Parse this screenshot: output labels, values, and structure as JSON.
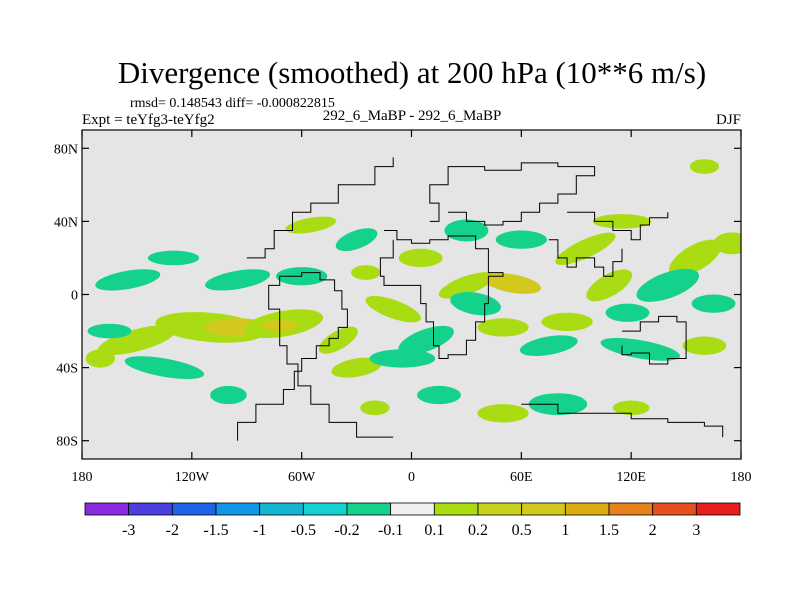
{
  "chart_data": {
    "type": "heatmap",
    "title": "Divergence (smoothed) at 200 hPa (10**6 m/s)",
    "stats": "rmsd= 0.148543  diff= -0.000822815",
    "experiment": "Expt = teYfg3-teYfg2",
    "subtitle": "292_6_MaBP - 292_6_MaBP",
    "season": "DJF",
    "x_range": [
      -180,
      180
    ],
    "y_range": [
      -90,
      90
    ],
    "x_ticks": [
      {
        "value": -180,
        "label": "180"
      },
      {
        "value": -120,
        "label": "120W"
      },
      {
        "value": -60,
        "label": "60W"
      },
      {
        "value": 0,
        "label": "0"
      },
      {
        "value": 60,
        "label": "60E"
      },
      {
        "value": 120,
        "label": "120E"
      },
      {
        "value": 180,
        "label": "180"
      }
    ],
    "y_ticks": [
      {
        "value": 80,
        "label": "80N"
      },
      {
        "value": 40,
        "label": "40N"
      },
      {
        "value": 0,
        "label": "0"
      },
      {
        "value": -40,
        "label": "40S"
      },
      {
        "value": -80,
        "label": "80S"
      }
    ],
    "colorbar": {
      "colors": [
        "#8a2be2",
        "#4b3fe0",
        "#1e64e6",
        "#1496e6",
        "#14b4d2",
        "#14d2d2",
        "#14d28c",
        "#f0f0f0",
        "#aadc14",
        "#c8d21e",
        "#d2c81e",
        "#dcaa14",
        "#e6821e",
        "#e6501e",
        "#e61e1e"
      ],
      "labels": [
        "-3",
        "-2",
        "-1.5",
        "-1",
        "-0.5",
        "-0.2",
        "-0.1",
        "0.1",
        "0.2",
        "0.5",
        "1",
        "1.5",
        "2",
        "3"
      ]
    },
    "blobs": [
      {
        "lon": -150,
        "lat": -25,
        "rx": 22,
        "ry": 6,
        "rot": -15,
        "level": "pos1"
      },
      {
        "lon": -110,
        "lat": -18,
        "rx": 30,
        "ry": 8,
        "rot": 5,
        "level": "pos1"
      },
      {
        "lon": -95,
        "lat": -18,
        "rx": 18,
        "ry": 5,
        "rot": 0,
        "level": "pos2"
      },
      {
        "lon": -70,
        "lat": -16,
        "rx": 22,
        "ry": 7,
        "rot": -10,
        "level": "pos1"
      },
      {
        "lon": -72,
        "lat": -17,
        "rx": 10,
        "ry": 3,
        "rot": 0,
        "level": "pos2"
      },
      {
        "lon": -40,
        "lat": -25,
        "rx": 12,
        "ry": 5,
        "rot": -30,
        "level": "pos1"
      },
      {
        "lon": -30,
        "lat": -40,
        "rx": 14,
        "ry": 5,
        "rot": -10,
        "level": "pos1"
      },
      {
        "lon": -55,
        "lat": 38,
        "rx": 14,
        "ry": 4,
        "rot": -10,
        "level": "pos1"
      },
      {
        "lon": -25,
        "lat": 12,
        "rx": 8,
        "ry": 4,
        "rot": 0,
        "level": "pos1"
      },
      {
        "lon": -10,
        "lat": -8,
        "rx": 16,
        "ry": 5,
        "rot": 20,
        "level": "pos1"
      },
      {
        "lon": 5,
        "lat": 20,
        "rx": 12,
        "ry": 5,
        "rot": 0,
        "level": "pos1"
      },
      {
        "lon": 30,
        "lat": 5,
        "rx": 16,
        "ry": 5,
        "rot": -20,
        "level": "pos1"
      },
      {
        "lon": 50,
        "lat": -18,
        "rx": 14,
        "ry": 5,
        "rot": 0,
        "level": "pos1"
      },
      {
        "lon": 55,
        "lat": 6,
        "rx": 16,
        "ry": 5,
        "rot": 10,
        "level": "pos2"
      },
      {
        "lon": 85,
        "lat": -15,
        "rx": 14,
        "ry": 5,
        "rot": 0,
        "level": "pos1"
      },
      {
        "lon": 95,
        "lat": 25,
        "rx": 18,
        "ry": 5,
        "rot": -25,
        "level": "pos1"
      },
      {
        "lon": 108,
        "lat": 5,
        "rx": 14,
        "ry": 6,
        "rot": -30,
        "level": "pos1"
      },
      {
        "lon": 115,
        "lat": 40,
        "rx": 16,
        "ry": 4,
        "rot": 0,
        "level": "pos1"
      },
      {
        "lon": 155,
        "lat": 20,
        "rx": 16,
        "ry": 7,
        "rot": -30,
        "level": "pos1"
      },
      {
        "lon": 175,
        "lat": 28,
        "rx": 10,
        "ry": 6,
        "rot": 0,
        "level": "pos1"
      },
      {
        "lon": 160,
        "lat": -28,
        "rx": 12,
        "ry": 5,
        "rot": 0,
        "level": "pos1"
      },
      {
        "lon": 50,
        "lat": -65,
        "rx": 14,
        "ry": 5,
        "rot": 0,
        "level": "pos1"
      },
      {
        "lon": 120,
        "lat": -62,
        "rx": 10,
        "ry": 4,
        "rot": 0,
        "level": "pos1"
      },
      {
        "lon": -20,
        "lat": -62,
        "rx": 8,
        "ry": 4,
        "rot": 0,
        "level": "pos1"
      },
      {
        "lon": 160,
        "lat": 70,
        "rx": 8,
        "ry": 4,
        "rot": 0,
        "level": "pos1"
      },
      {
        "lon": -155,
        "lat": 8,
        "rx": 18,
        "ry": 5,
        "rot": -10,
        "level": "neg1"
      },
      {
        "lon": -130,
        "lat": 20,
        "rx": 14,
        "ry": 4,
        "rot": 0,
        "level": "neg1"
      },
      {
        "lon": -135,
        "lat": -40,
        "rx": 22,
        "ry": 5,
        "rot": 10,
        "level": "neg1"
      },
      {
        "lon": -165,
        "lat": -20,
        "rx": 12,
        "ry": 4,
        "rot": 0,
        "level": "neg1"
      },
      {
        "lon": -95,
        "lat": 8,
        "rx": 18,
        "ry": 5,
        "rot": -10,
        "level": "neg1"
      },
      {
        "lon": -60,
        "lat": 10,
        "rx": 14,
        "ry": 5,
        "rot": 0,
        "level": "neg1"
      },
      {
        "lon": -30,
        "lat": 30,
        "rx": 12,
        "ry": 5,
        "rot": -20,
        "level": "neg1"
      },
      {
        "lon": -5,
        "lat": -35,
        "rx": 18,
        "ry": 5,
        "rot": 0,
        "level": "neg1"
      },
      {
        "lon": 8,
        "lat": -25,
        "rx": 16,
        "ry": 6,
        "rot": -20,
        "level": "neg1"
      },
      {
        "lon": 15,
        "lat": -55,
        "rx": 12,
        "ry": 5,
        "rot": 0,
        "level": "neg1"
      },
      {
        "lon": 30,
        "lat": 35,
        "rx": 12,
        "ry": 6,
        "rot": 0,
        "level": "neg1"
      },
      {
        "lon": 35,
        "lat": -5,
        "rx": 14,
        "ry": 6,
        "rot": 10,
        "level": "neg1"
      },
      {
        "lon": 60,
        "lat": 30,
        "rx": 14,
        "ry": 5,
        "rot": 0,
        "level": "neg1"
      },
      {
        "lon": 75,
        "lat": -28,
        "rx": 16,
        "ry": 5,
        "rot": -10,
        "level": "neg1"
      },
      {
        "lon": 80,
        "lat": -60,
        "rx": 16,
        "ry": 6,
        "rot": 0,
        "level": "neg1"
      },
      {
        "lon": 125,
        "lat": -30,
        "rx": 22,
        "ry": 5,
        "rot": 10,
        "level": "neg1"
      },
      {
        "lon": 140,
        "lat": 5,
        "rx": 18,
        "ry": 7,
        "rot": -20,
        "level": "neg1"
      },
      {
        "lon": 165,
        "lat": -5,
        "rx": 12,
        "ry": 5,
        "rot": 0,
        "level": "neg1"
      },
      {
        "lon": 118,
        "lat": -10,
        "rx": 12,
        "ry": 5,
        "rot": 0,
        "level": "neg1"
      },
      {
        "lon": -100,
        "lat": -55,
        "rx": 10,
        "ry": 5,
        "rot": 0,
        "level": "neg1"
      },
      {
        "lon": -170,
        "lat": -35,
        "rx": 8,
        "ry": 5,
        "rot": 0,
        "level": "pos1"
      }
    ]
  }
}
